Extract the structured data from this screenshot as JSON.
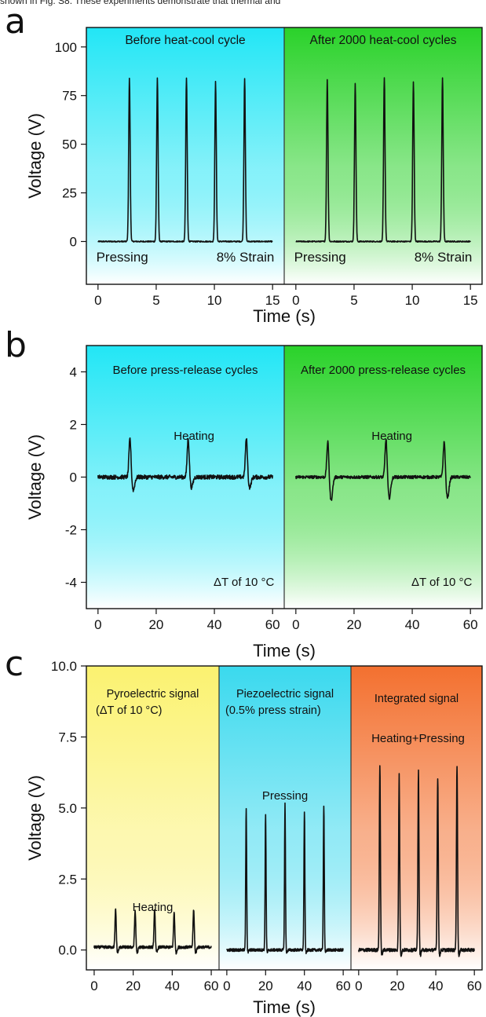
{
  "caption_fragment": "shown in Fig. S8. These experiments demonstrate that thermal and",
  "chart_data": [
    {
      "type": "line",
      "panel_label": "a",
      "xlabel": "Time (s)",
      "ylabel": "Voltage (V)",
      "ylim": [
        -22,
        110
      ],
      "yticks": [
        0,
        25,
        50,
        75,
        100
      ],
      "grid": false,
      "gradient": [
        "#22e6f5",
        "#ffffff"
      ],
      "subpanels": [
        {
          "header": "Before heat-cool cycle",
          "annotations": [
            "Pressing",
            "8% Strain"
          ],
          "xlim": [
            -1,
            16
          ],
          "xticks": [
            0,
            5,
            10,
            15
          ],
          "baseline": 0,
          "peak_width": 0.18,
          "peaks": [
            {
              "x": 2.7,
              "y": 84,
              "undershoot": 0
            },
            {
              "x": 5.1,
              "y": 84,
              "undershoot": 0
            },
            {
              "x": 7.6,
              "y": 84,
              "undershoot": 0
            },
            {
              "x": 10.1,
              "y": 82,
              "undershoot": 0
            },
            {
              "x": 12.6,
              "y": 84,
              "undershoot": 0
            }
          ],
          "noise": 0.3,
          "trace_range": [
            0,
            15
          ]
        },
        {
          "header": "After 2000 heat-cool cycles",
          "annotations": [
            "Pressing",
            "8% Strain"
          ],
          "gradient": [
            "#2ad22a",
            "#ffffff"
          ],
          "xlim": [
            -1,
            16
          ],
          "xticks": [
            0,
            5,
            10,
            15
          ],
          "baseline": 0,
          "peak_width": 0.18,
          "peaks": [
            {
              "x": 2.7,
              "y": 83,
              "undershoot": 0
            },
            {
              "x": 5.1,
              "y": 81,
              "undershoot": 0
            },
            {
              "x": 7.6,
              "y": 84,
              "undershoot": 0
            },
            {
              "x": 10.1,
              "y": 82,
              "undershoot": 0
            },
            {
              "x": 12.6,
              "y": 84,
              "undershoot": 0
            }
          ],
          "noise": 0.3,
          "trace_range": [
            0,
            15
          ]
        }
      ]
    },
    {
      "type": "line",
      "panel_label": "b",
      "xlabel": "Time (s)",
      "ylabel": "Voltage (V)",
      "ylim": [
        -5,
        5
      ],
      "yticks": [
        -4,
        -2,
        0,
        2,
        4
      ],
      "grid": false,
      "gradient": [
        "#22e6f5",
        "#ffffff"
      ],
      "subpanels": [
        {
          "header": "Before press-release cycles",
          "annotations": [
            "Heating",
            "ΔT of 10 °C"
          ],
          "xlim": [
            -4,
            64
          ],
          "xticks": [
            0,
            20,
            40,
            60
          ],
          "baseline": 0,
          "peak_width": 1.0,
          "peaks": [
            {
              "x": 11,
              "y": 1.5,
              "undershoot": -0.5
            },
            {
              "x": 31,
              "y": 1.5,
              "undershoot": -0.4
            },
            {
              "x": 51,
              "y": 1.5,
              "undershoot": -0.4
            }
          ],
          "noise": 0.08,
          "trace_range": [
            0,
            60
          ]
        },
        {
          "header": "After 2000 press-release cycles",
          "annotations": [
            "Heating",
            "ΔT of 10 °C"
          ],
          "gradient": [
            "#2ad22a",
            "#ffffff"
          ],
          "xlim": [
            -4,
            64
          ],
          "xticks": [
            0,
            20,
            40,
            60
          ],
          "baseline": 0,
          "peak_width": 1.0,
          "peaks": [
            {
              "x": 11,
              "y": 1.4,
              "undershoot": -0.9
            },
            {
              "x": 31,
              "y": 1.5,
              "undershoot": -0.8
            },
            {
              "x": 51,
              "y": 1.4,
              "undershoot": -0.8
            }
          ],
          "noise": 0.06,
          "trace_range": [
            0,
            60
          ]
        }
      ]
    },
    {
      "type": "line",
      "panel_label": "c",
      "xlabel": "Time (s)",
      "ylabel": "Voltage (V)",
      "ylim": [
        -0.7,
        10
      ],
      "yticks": [
        0.0,
        2.5,
        5.0,
        7.5,
        10.0
      ],
      "grid": false,
      "subpanels": [
        {
          "header": "Pyroelectric signal",
          "header2": "(ΔT of 10 °C)",
          "annotations": [
            "Heating"
          ],
          "gradient": [
            "#fbf270",
            "#ffffff"
          ],
          "xlim": [
            -4,
            64
          ],
          "xticks": [
            0,
            20,
            40,
            60
          ],
          "baseline": 0.1,
          "peak_width": 0.9,
          "peaks": [
            {
              "x": 11,
              "y": 1.45,
              "undershoot": -0.2
            },
            {
              "x": 21,
              "y": 1.4,
              "undershoot": -0.2
            },
            {
              "x": 31,
              "y": 1.45,
              "undershoot": -0.2
            },
            {
              "x": 41,
              "y": 1.35,
              "undershoot": -0.2
            },
            {
              "x": 51,
              "y": 1.45,
              "undershoot": -0.2
            }
          ],
          "noise": 0.05,
          "trace_range": [
            0,
            60
          ]
        },
        {
          "header": "Piezoelectric signal",
          "header2": "(0.5% press strain)",
          "annotations": [
            "Pressing"
          ],
          "gradient": [
            "#3ad9ee",
            "#ffffff"
          ],
          "xlim": [
            -4,
            64
          ],
          "xticks": [
            0,
            20,
            40,
            60
          ],
          "baseline": 0.0,
          "peak_width": 0.7,
          "peaks": [
            {
              "x": 10,
              "y": 5.0,
              "undershoot": -0.1
            },
            {
              "x": 20,
              "y": 4.8,
              "undershoot": -0.1
            },
            {
              "x": 30,
              "y": 5.2,
              "undershoot": -0.1
            },
            {
              "x": 40,
              "y": 4.9,
              "undershoot": -0.1
            },
            {
              "x": 50,
              "y": 5.1,
              "undershoot": -0.1
            }
          ],
          "noise": 0.05,
          "trace_range": [
            0,
            60
          ]
        },
        {
          "header": "Integrated signal",
          "header2": "",
          "annotations": [
            "Heating+Pressing"
          ],
          "gradient": [
            "#f3702f",
            "#ffffff"
          ],
          "xlim": [
            -4,
            64
          ],
          "xticks": [
            0,
            20,
            40,
            60
          ],
          "baseline": 0.0,
          "peak_width": 0.8,
          "peaks": [
            {
              "x": 11,
              "y": 6.5,
              "undershoot": -0.2
            },
            {
              "x": 21,
              "y": 6.2,
              "undershoot": -0.2
            },
            {
              "x": 31,
              "y": 6.3,
              "undershoot": -0.2
            },
            {
              "x": 41,
              "y": 6.1,
              "undershoot": -0.2
            },
            {
              "x": 51,
              "y": 6.5,
              "undershoot": -0.2
            }
          ],
          "noise": 0.06,
          "trace_range": [
            0,
            60
          ]
        }
      ]
    }
  ]
}
